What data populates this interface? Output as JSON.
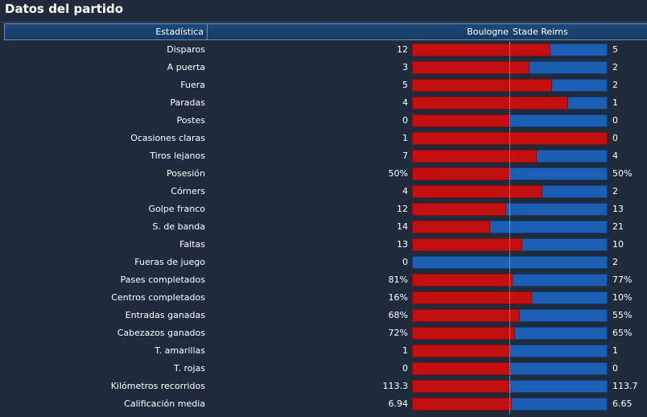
{
  "title": "Datos del partido",
  "header": {
    "stat_label": "Estadística",
    "home_team": "Boulogne",
    "away_team": "Stade Reims"
  },
  "colors": {
    "home": "#c40f10",
    "away": "#1a5fb4",
    "background": "#1f2b3a"
  },
  "stats": [
    {
      "label": "Disparos",
      "home": "12",
      "away": "5",
      "home_share": 0.706
    },
    {
      "label": "A puerta",
      "home": "3",
      "away": "2",
      "home_share": 0.6
    },
    {
      "label": "Fuera",
      "home": "5",
      "away": "2",
      "home_share": 0.714
    },
    {
      "label": "Paradas",
      "home": "4",
      "away": "1",
      "home_share": 0.8
    },
    {
      "label": "Postes",
      "home": "0",
      "away": "0",
      "home_share": 0.5
    },
    {
      "label": "Ocasiones claras",
      "home": "1",
      "away": "0",
      "home_share": 1.0
    },
    {
      "label": "Tiros lejanos",
      "home": "7",
      "away": "4",
      "home_share": 0.636
    },
    {
      "label": "Posesión",
      "home": "50%",
      "away": "50%",
      "home_share": 0.5
    },
    {
      "label": "Córners",
      "home": "4",
      "away": "2",
      "home_share": 0.667
    },
    {
      "label": "Golpe franco",
      "home": "12",
      "away": "13",
      "home_share": 0.48
    },
    {
      "label": "S. de banda",
      "home": "14",
      "away": "21",
      "home_share": 0.4
    },
    {
      "label": "Faltas",
      "home": "13",
      "away": "10",
      "home_share": 0.565
    },
    {
      "label": "Fueras de juego",
      "home": "0",
      "away": "2",
      "home_share": 0.0
    },
    {
      "label": "Pases completados",
      "home": "81%",
      "away": "77%",
      "home_share": 0.513
    },
    {
      "label": "Centros completados",
      "home": "16%",
      "away": "10%",
      "home_share": 0.615
    },
    {
      "label": "Entradas ganadas",
      "home": "68%",
      "away": "55%",
      "home_share": 0.553
    },
    {
      "label": "Cabezazos ganados",
      "home": "72%",
      "away": "65%",
      "home_share": 0.526
    },
    {
      "label": "T. amarillas",
      "home": "1",
      "away": "1",
      "home_share": 0.5
    },
    {
      "label": "T. rojas",
      "home": "0",
      "away": "0",
      "home_share": 0.5
    },
    {
      "label": "Kilómetros recorridos",
      "home": "113.3",
      "away": "113.7",
      "home_share": 0.499
    },
    {
      "label": "Calificación media",
      "home": "6.94",
      "away": "6.65",
      "home_share": 0.511
    }
  ]
}
